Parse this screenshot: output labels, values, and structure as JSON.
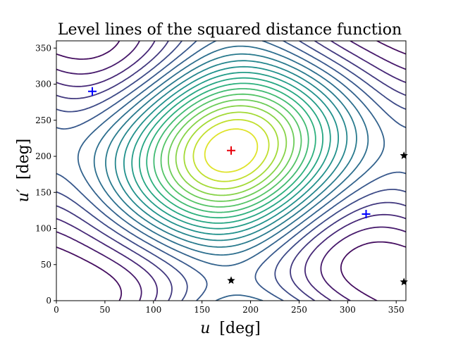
{
  "chart_data": {
    "type": "contour",
    "title": "Level lines of the squared distance function",
    "xlabel_var": "u",
    "xlabel_unit": "[deg]",
    "ylabel_var": "u′",
    "ylabel_unit": "[deg]",
    "xlim": [
      0,
      360
    ],
    "ylim": [
      0,
      360
    ],
    "xticks": [
      0,
      50,
      100,
      150,
      200,
      250,
      300,
      350
    ],
    "yticks": [
      0,
      50,
      100,
      150,
      200,
      250,
      300,
      350
    ],
    "colormap": "viridis",
    "contour_levels": 22,
    "grid": false,
    "maximum_marker": {
      "u": 180,
      "u_prime": 208,
      "color": "#e8000b",
      "symbol": "plus"
    },
    "minimum_markers": [
      {
        "u": 37,
        "u_prime": 290,
        "color": "#0000ff",
        "symbol": "plus"
      },
      {
        "u": 319,
        "u_prime": 120,
        "color": "#0000ff",
        "symbol": "plus"
      }
    ],
    "saddle_markers": [
      {
        "u": 180,
        "u_prime": 28,
        "color": "#000000",
        "symbol": "star"
      },
      {
        "u": 358,
        "u_prime": 201,
        "color": "#000000",
        "symbol": "star"
      },
      {
        "u": 358,
        "u_prime": 26,
        "color": "#000000",
        "symbol": "star"
      }
    ]
  }
}
